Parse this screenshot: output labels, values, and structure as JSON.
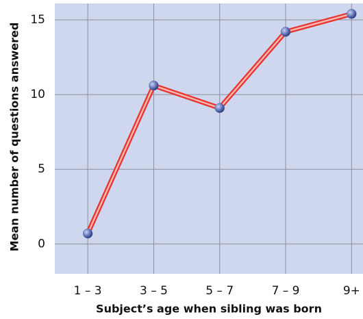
{
  "chart_data": {
    "type": "line",
    "x_label": "Subject’s age when sibling was born",
    "y_label": "Mean number of questions answered",
    "categories": [
      "1 – 3",
      "3 – 5",
      "5 – 7",
      "7 – 9",
      "9+"
    ],
    "values": [
      0.7,
      10.6,
      9.1,
      14.2,
      15.4
    ],
    "color": "#e8322e",
    "marker_color": "#5b6fb5",
    "ylim": [
      -2,
      16.1
    ],
    "yticks": [
      0,
      5,
      10,
      15
    ],
    "grid": true
  }
}
